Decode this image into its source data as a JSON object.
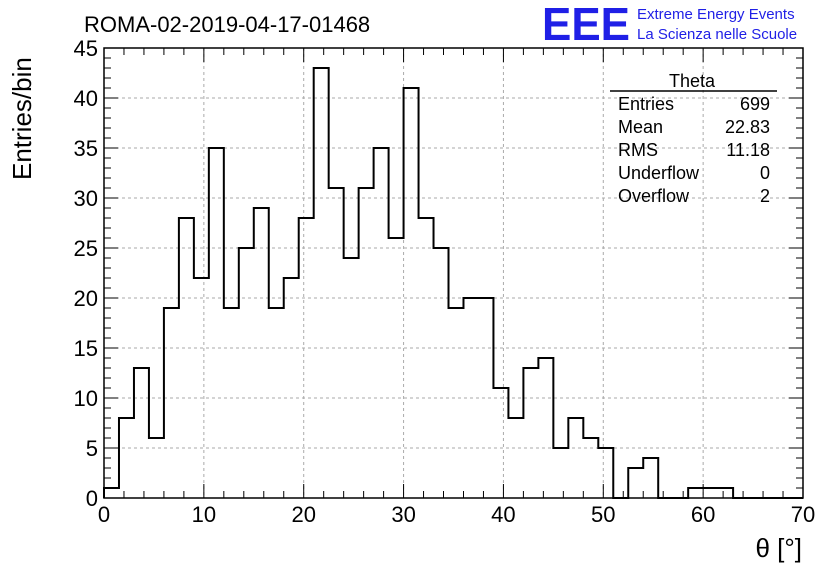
{
  "title": "ROMA-02-2019-04-17-01468",
  "logo": {
    "mark": "EEE",
    "line1": "Extreme Energy Events",
    "line2": "La Scienza nelle Scuole",
    "color": "#1f1fe6"
  },
  "stats": {
    "name": "Theta",
    "rows": [
      {
        "label": "Entries",
        "value": "699"
      },
      {
        "label": "Mean",
        "value": "22.83"
      },
      {
        "label": "RMS",
        "value": "11.18"
      },
      {
        "label": "Underflow",
        "value": "0"
      },
      {
        "label": "Overflow",
        "value": "2"
      }
    ]
  },
  "chart_data": {
    "type": "bar",
    "style": "step-histogram",
    "title": "ROMA-02-2019-04-17-01468",
    "xlabel": "θ [°]",
    "ylabel": "Entries/bin",
    "xlim": [
      0,
      70
    ],
    "ylim": [
      0,
      45
    ],
    "grid": true,
    "bin_width": 1.5,
    "bin_edges_start": 0,
    "x_ticks": [
      0,
      10,
      20,
      30,
      40,
      50,
      60,
      70
    ],
    "y_ticks": [
      0,
      5,
      10,
      15,
      20,
      25,
      30,
      35,
      40,
      45
    ],
    "values": [
      1,
      8,
      13,
      6,
      19,
      28,
      22,
      35,
      19,
      25,
      29,
      19,
      22,
      28,
      43,
      31,
      24,
      31,
      35,
      26,
      41,
      28,
      25,
      19,
      20,
      20,
      11,
      8,
      13,
      14,
      5,
      8,
      6,
      5,
      0,
      3,
      4,
      0,
      0,
      1,
      1,
      1,
      0,
      0,
      0,
      0,
      0
    ]
  }
}
